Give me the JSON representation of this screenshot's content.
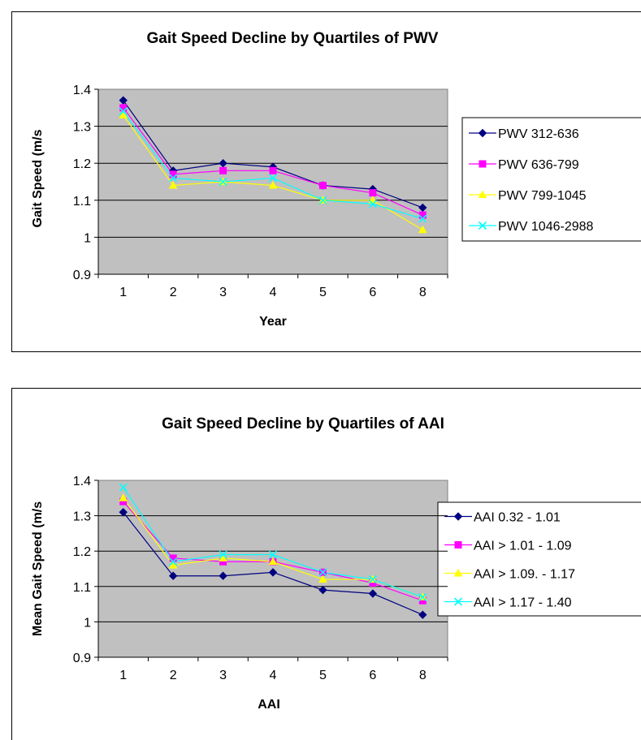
{
  "chart_data": [
    {
      "type": "line",
      "title": "Gait Speed Decline by Quartiles of PWV",
      "xlabel": "Year",
      "ylabel": "Gait Speed (m/s",
      "categories": [
        "1",
        "2",
        "3",
        "4",
        "5",
        "6",
        "8"
      ],
      "ylim": [
        0.9,
        1.4
      ],
      "yticks": [
        "0.9",
        "1",
        "1.1",
        "1.2",
        "1.3",
        "1.4"
      ],
      "grid": true,
      "legend_position": "right",
      "series": [
        {
          "name": "PWV 312-636",
          "color": "#000080",
          "marker": "diamond",
          "values": [
            1.37,
            1.18,
            1.2,
            1.19,
            1.14,
            1.13,
            1.08
          ]
        },
        {
          "name": "PWV 636-799",
          "color": "#ff00ff",
          "marker": "square",
          "values": [
            1.35,
            1.17,
            1.18,
            1.18,
            1.14,
            1.12,
            1.06
          ]
        },
        {
          "name": "PWV 799-1045",
          "color": "#ffff00",
          "marker": "triangle",
          "values": [
            1.33,
            1.14,
            1.15,
            1.14,
            1.1,
            1.1,
            1.02
          ]
        },
        {
          "name": "PWV 1046-2988",
          "color": "#00ffff",
          "marker": "x",
          "values": [
            1.34,
            1.16,
            1.15,
            1.16,
            1.1,
            1.09,
            1.05
          ]
        }
      ]
    },
    {
      "type": "line",
      "title": "Gait Speed Decline by Quartiles of AAI",
      "xlabel": "AAI",
      "ylabel": "Mean Gait Speed (m/s",
      "categories": [
        "1",
        "2",
        "3",
        "4",
        "5",
        "6",
        "8"
      ],
      "ylim": [
        0.9,
        1.4
      ],
      "yticks": [
        "0.9",
        "1",
        "1.1",
        "1.2",
        "1.3",
        "1.4"
      ],
      "grid": true,
      "legend_position": "right",
      "series": [
        {
          "name": "AAI 0.32 - 1.01",
          "color": "#000080",
          "marker": "diamond",
          "values": [
            1.31,
            1.13,
            1.13,
            1.14,
            1.09,
            1.08,
            1.02
          ]
        },
        {
          "name": "AAI > 1.01 - 1.09",
          "color": "#ff00ff",
          "marker": "square",
          "values": [
            1.34,
            1.18,
            1.17,
            1.17,
            1.14,
            1.11,
            1.06
          ]
        },
        {
          "name": "AAI > 1.09. - 1.17",
          "color": "#ffff00",
          "marker": "triangle",
          "values": [
            1.35,
            1.16,
            1.18,
            1.17,
            1.12,
            1.12,
            1.07
          ]
        },
        {
          "name": "AAI > 1.17 - 1.40",
          "color": "#00ffff",
          "marker": "x",
          "values": [
            1.38,
            1.17,
            1.19,
            1.19,
            1.14,
            1.12,
            1.07
          ]
        }
      ]
    }
  ]
}
